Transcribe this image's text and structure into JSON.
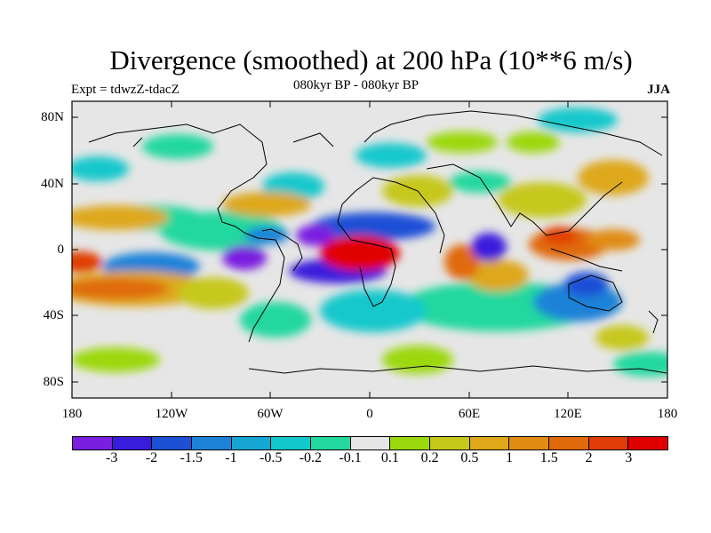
{
  "title": "Divergence (smoothed) at 200 hPa (10**6 m/s)",
  "experiment": "Expt = tdwzZ-tdacZ",
  "period": "080kyr BP - 080kyr BP",
  "season": "JJA",
  "lat_labels": [
    "80N",
    "40N",
    "0",
    "40S",
    "80S"
  ],
  "lon_labels": [
    "180",
    "120W",
    "60W",
    "0",
    "60E",
    "120E",
    "180"
  ],
  "colorbar": {
    "colors": [
      "#7a1ee0",
      "#3a1cdc",
      "#1e50d6",
      "#1e82d8",
      "#16a6d4",
      "#12c8cc",
      "#22d89e",
      "#e6e6e6",
      "#9cd80e",
      "#c6c81a",
      "#dea81a",
      "#e08c12",
      "#e06a0a",
      "#e03c06",
      "#e00000"
    ],
    "labels": [
      "-3",
      "-2",
      "-1.5",
      "-1",
      "-0.5",
      "-0.2",
      "-0.1",
      "0.1",
      "0.2",
      "0.5",
      "1",
      "1.5",
      "2",
      "3"
    ]
  },
  "map_axes": {
    "lon_range": [
      -180,
      180
    ],
    "lat_range": [
      -90,
      90
    ]
  }
}
